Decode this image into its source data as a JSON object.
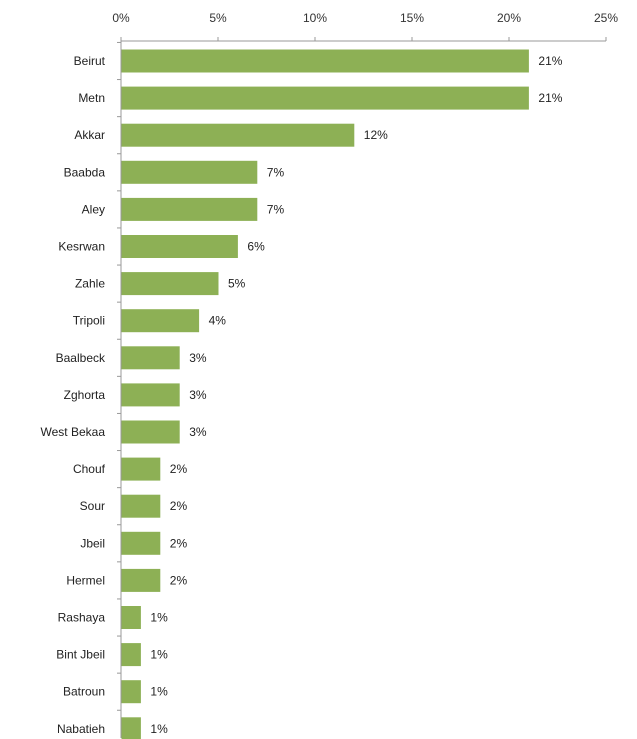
{
  "chart_data": {
    "type": "bar",
    "orientation": "horizontal",
    "categories": [
      "Beirut",
      "Metn",
      "Akkar",
      "Baabda",
      "Aley",
      "Kesrwan",
      "Zahle",
      "Tripoli",
      "Baalbeck",
      "Zghorta",
      "West Bekaa",
      "Chouf",
      "Sour",
      "Jbeil",
      "Hermel",
      "Rashaya",
      "Bint Jbeil",
      "Batroun",
      "Nabatieh"
    ],
    "values": [
      21,
      21,
      12,
      7,
      7,
      6,
      5,
      4,
      3,
      3,
      3,
      2,
      2,
      2,
      2,
      1,
      1,
      1,
      1
    ],
    "data_labels": [
      "21%",
      "21%",
      "12%",
      "7%",
      "7%",
      "6%",
      "5%",
      "4%",
      "3%",
      "3%",
      "3%",
      "2%",
      "2%",
      "2%",
      "2%",
      "1%",
      "1%",
      "1%",
      "1%"
    ],
    "xlim": [
      0,
      25
    ],
    "xticks": [
      0,
      5,
      10,
      15,
      20,
      25
    ],
    "xtick_labels": [
      "0%",
      "5%",
      "10%",
      "15%",
      "20%",
      "25%"
    ],
    "x_axis_position": "top",
    "grid": false,
    "legend": "none",
    "bar_color": "#8db055",
    "title": "",
    "xlabel": "",
    "ylabel": ""
  }
}
